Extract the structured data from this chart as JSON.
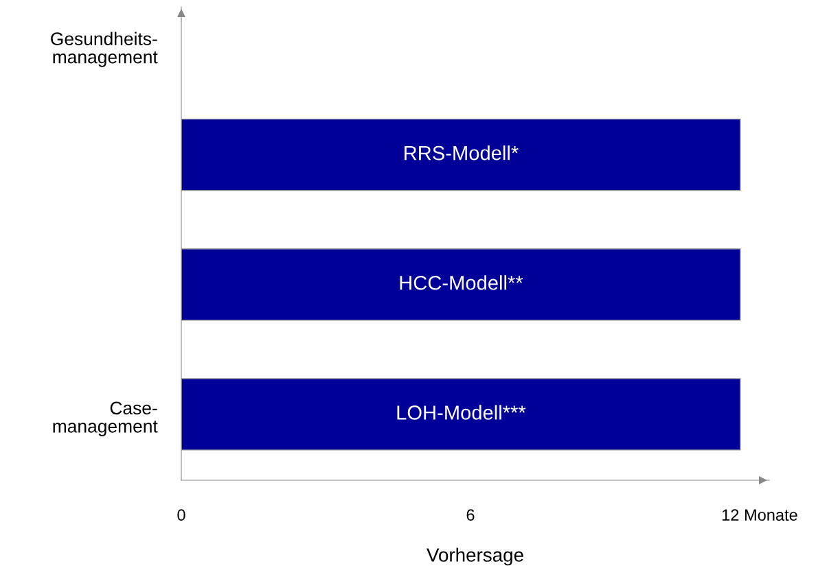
{
  "chart_data": {
    "type": "bar",
    "orientation": "horizontal",
    "xlabel": "Vorhersage",
    "categories": [
      "RRS-Modell*",
      "HCC-Modell**",
      "LOH-Modell***"
    ],
    "values": [
      11.6,
      11.6,
      11.6
    ],
    "color": "#000099",
    "xlim": [
      0,
      12.2
    ],
    "xticks": [
      0,
      6,
      {
        "value": 12,
        "label": "12 Monate"
      }
    ],
    "annotations": [
      "Gesundheits-\nmanagement",
      "Case-\nmanagement"
    ],
    "grid": false,
    "legend": false
  }
}
